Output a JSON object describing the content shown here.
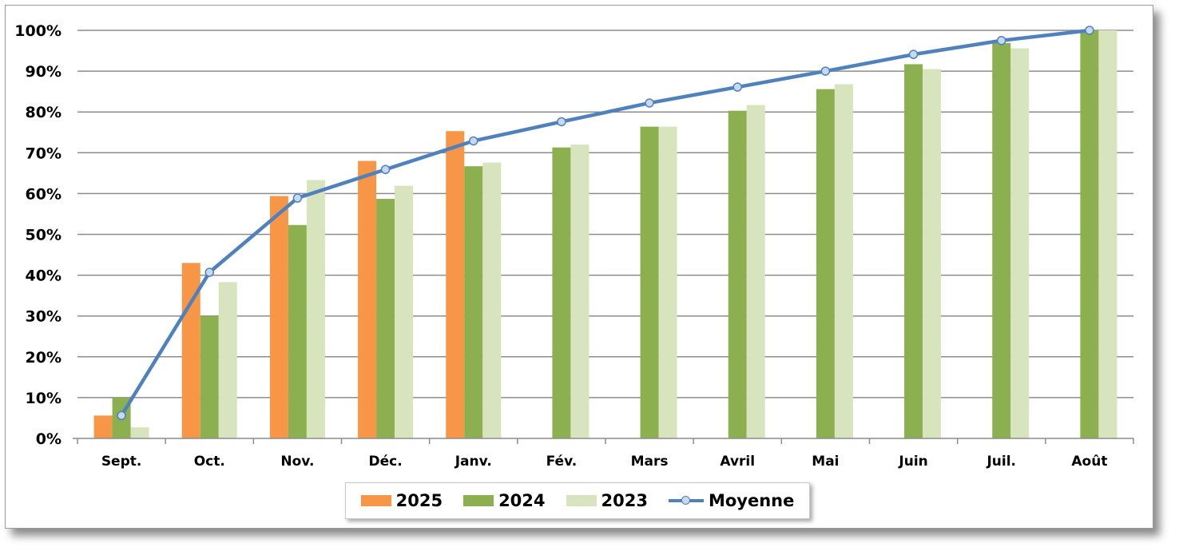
{
  "chart_data": {
    "type": "bar",
    "categories": [
      "Sept.",
      "Oct.",
      "Nov.",
      "Déc.",
      "Janv.",
      "Fév.",
      "Mars",
      "Avril",
      "Mai",
      "Juin",
      "Juil.",
      "Août"
    ],
    "series": [
      {
        "name": "2025",
        "type": "bar",
        "color": "#f79646",
        "values": [
          5.6,
          43,
          59.4,
          68,
          75.3,
          null,
          null,
          null,
          null,
          null,
          null,
          null
        ]
      },
      {
        "name": "2024",
        "type": "bar",
        "color": "#8cb050",
        "values": [
          10,
          30,
          52.3,
          58.7,
          66.7,
          71.3,
          76.4,
          80.3,
          85.6,
          91.7,
          96.9,
          100
        ]
      },
      {
        "name": "2023",
        "type": "bar",
        "color": "#d7e4bd",
        "values": [
          2.7,
          38.3,
          63.3,
          61.9,
          67.6,
          72,
          76.4,
          81.7,
          86.8,
          90.5,
          95.6,
          100
        ]
      },
      {
        "name": "Moyenne",
        "type": "line",
        "color": "#4f81bd",
        "values": [
          5.6,
          40.7,
          58.9,
          65.9,
          72.9,
          77.6,
          82.2,
          86.1,
          90,
          94.1,
          97.5,
          100
        ]
      }
    ],
    "y_tick_labels": [
      "0%",
      "10%",
      "20%",
      "30%",
      "40%",
      "50%",
      "60%",
      "70%",
      "80%",
      "90%",
      "100%"
    ],
    "ylim": [
      0,
      100
    ],
    "grid": true,
    "legend": "bottom"
  }
}
